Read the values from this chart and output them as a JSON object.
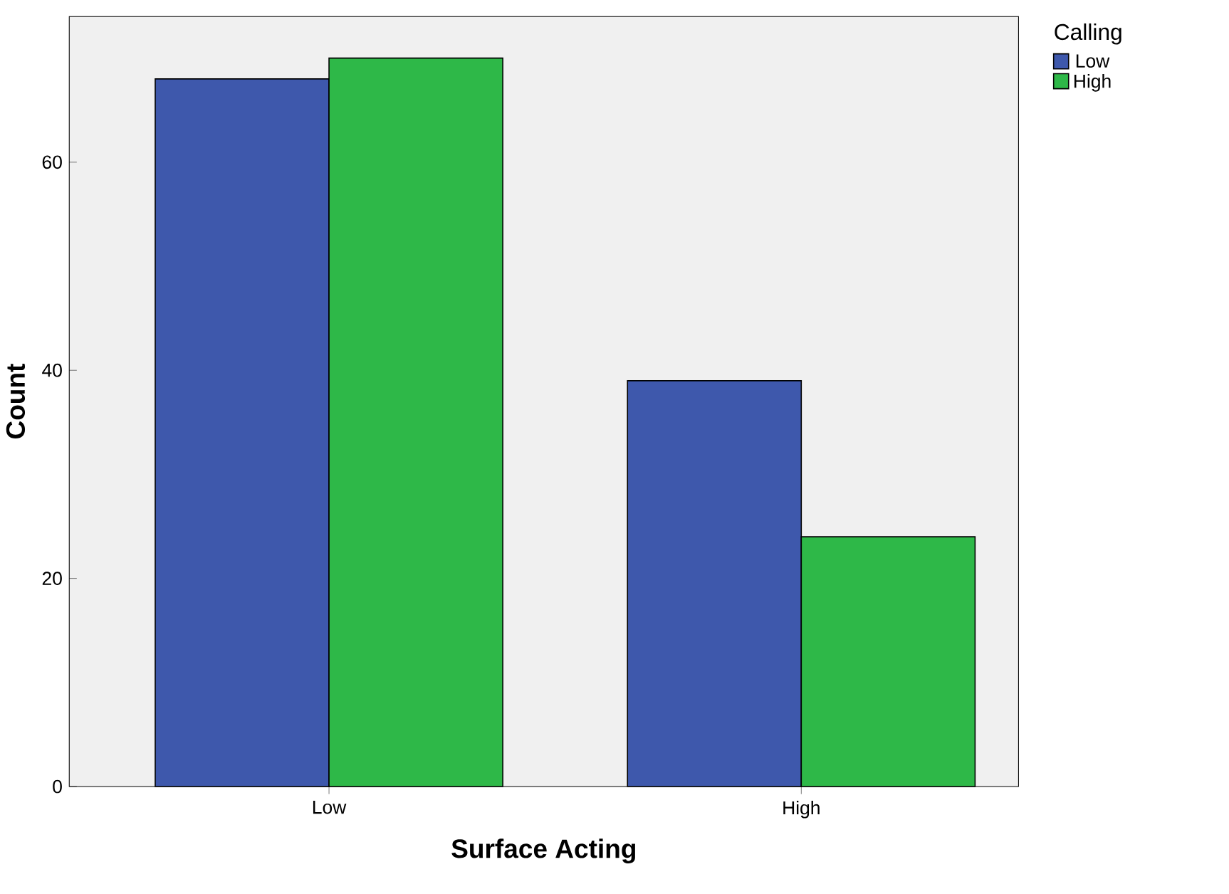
{
  "chart_data": {
    "type": "bar",
    "xlabel": "Surface Acting",
    "ylabel": "Count",
    "legend_title": "Calling",
    "categories": [
      "Low",
      "High"
    ],
    "series": [
      {
        "name": "Low",
        "color": "#3e58ac",
        "values": [
          68,
          39
        ]
      },
      {
        "name": "High",
        "color": "#2eb848",
        "values": [
          70,
          24
        ]
      }
    ],
    "ylim": [
      0,
      74
    ],
    "yticks": [
      0,
      20,
      40,
      60
    ],
    "grid": false,
    "legend": "top right"
  }
}
